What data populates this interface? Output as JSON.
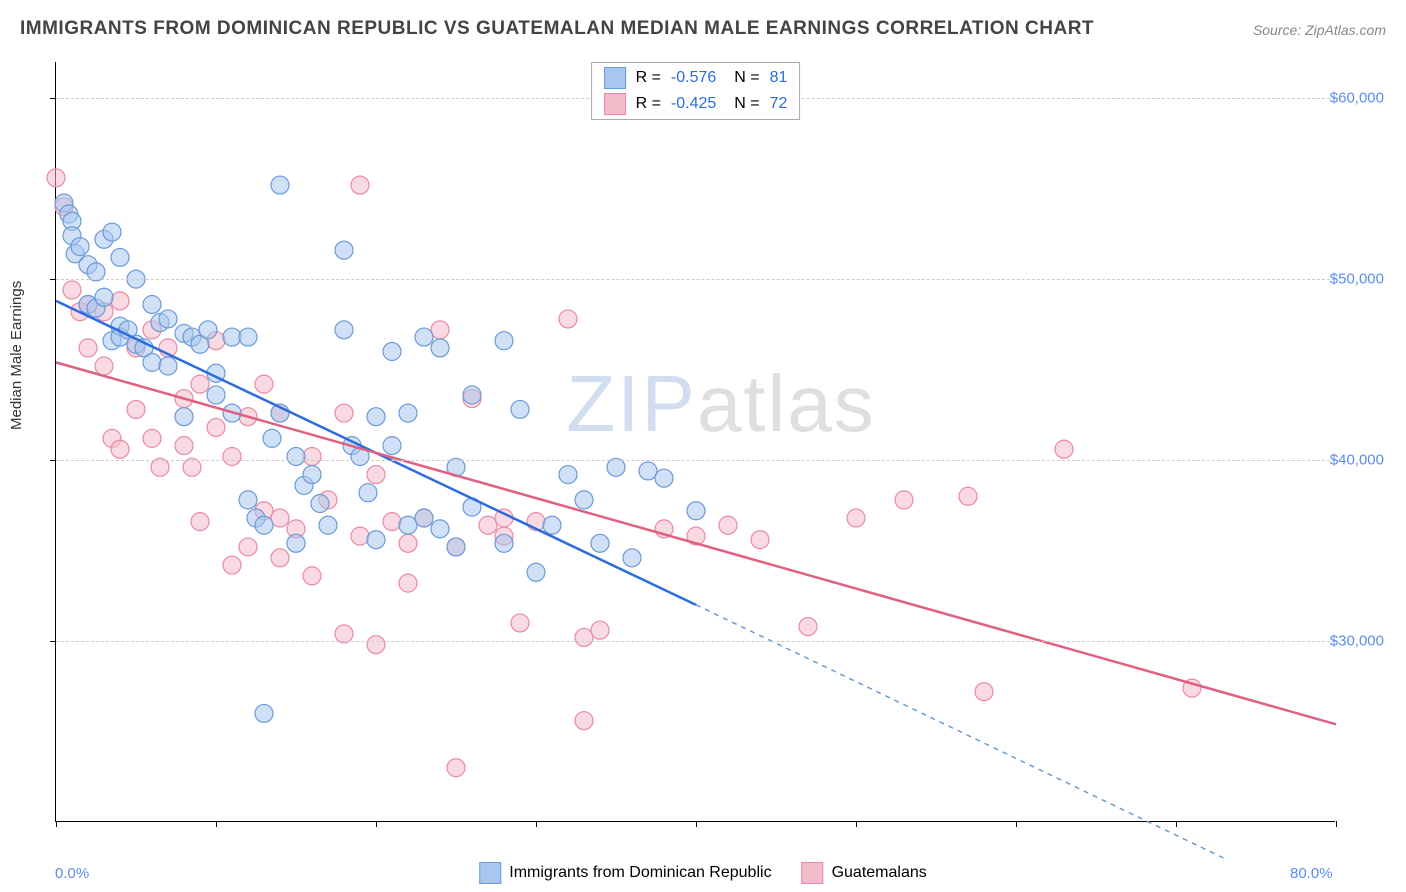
{
  "title": "IMMIGRANTS FROM DOMINICAN REPUBLIC VS GUATEMALAN MEDIAN MALE EARNINGS CORRELATION CHART",
  "source": "Source: ZipAtlas.com",
  "y_axis_label": "Median Male Earnings",
  "watermark": {
    "part1": "ZIP",
    "part2": "atlas"
  },
  "chart": {
    "type": "scatter",
    "xlim": [
      0,
      80
    ],
    "ylim": [
      20000,
      62000
    ],
    "x_ticks_minor": [
      0,
      10,
      20,
      30,
      40,
      50,
      60,
      70,
      80
    ],
    "x_tick_labels": [
      {
        "x": 0,
        "label": "0.0%"
      },
      {
        "x": 80,
        "label": "80.0%"
      }
    ],
    "y_gridlines": [
      30000,
      40000,
      50000,
      60000
    ],
    "y_tick_labels": [
      {
        "y": 30000,
        "label": "$30,000"
      },
      {
        "y": 40000,
        "label": "$40,000"
      },
      {
        "y": 50000,
        "label": "$50,000"
      },
      {
        "y": 60000,
        "label": "$60,000"
      }
    ],
    "background_color": "#ffffff",
    "grid_color": "#cccccc",
    "marker_radius": 9,
    "marker_opacity": 0.55,
    "line_width": 2.5,
    "series": [
      {
        "key": "dominican",
        "label": "Immigrants from Dominican Republic",
        "color_fill": "#a9c6ee",
        "color_stroke": "#6a9ad8",
        "trend_color": "#2d6cdf",
        "R": "-0.576",
        "N": "81",
        "trend": {
          "x1": 0,
          "y1": 48800,
          "x2": 40,
          "y2": 32000,
          "extend_x2": 73,
          "extend_y2": 18000
        },
        "points": [
          [
            0.5,
            54200
          ],
          [
            0.8,
            53600
          ],
          [
            1,
            53200
          ],
          [
            1,
            52400
          ],
          [
            1.2,
            51400
          ],
          [
            1.5,
            51800
          ],
          [
            2,
            50800
          ],
          [
            2.5,
            50400
          ],
          [
            2,
            48600
          ],
          [
            2.5,
            48400
          ],
          [
            3,
            49000
          ],
          [
            3,
            52200
          ],
          [
            3.5,
            52600
          ],
          [
            4,
            51200
          ],
          [
            3.5,
            46600
          ],
          [
            4,
            47400
          ],
          [
            4,
            46800
          ],
          [
            4.5,
            47200
          ],
          [
            5,
            46400
          ],
          [
            5,
            50000
          ],
          [
            5.5,
            46200
          ],
          [
            6,
            48600
          ],
          [
            6.5,
            47600
          ],
          [
            7,
            47800
          ],
          [
            6,
            45400
          ],
          [
            7,
            45200
          ],
          [
            8,
            47000
          ],
          [
            8.5,
            46800
          ],
          [
            9,
            46400
          ],
          [
            9.5,
            47200
          ],
          [
            10,
            44800
          ],
          [
            10,
            43600
          ],
          [
            11,
            46800
          ],
          [
            11,
            42600
          ],
          [
            12,
            46800
          ],
          [
            12,
            37800
          ],
          [
            12.5,
            36800
          ],
          [
            13,
            36400
          ],
          [
            13.5,
            41200
          ],
          [
            14,
            42600
          ],
          [
            14,
            55200
          ],
          [
            15,
            40200
          ],
          [
            15,
            35400
          ],
          [
            15.5,
            38600
          ],
          [
            16,
            39200
          ],
          [
            16.5,
            37600
          ],
          [
            17,
            36400
          ],
          [
            18,
            51600
          ],
          [
            18,
            47200
          ],
          [
            18.5,
            40800
          ],
          [
            19,
            40200
          ],
          [
            19.5,
            38200
          ],
          [
            20,
            42400
          ],
          [
            20,
            35600
          ],
          [
            21,
            46000
          ],
          [
            21,
            40800
          ],
          [
            22,
            42600
          ],
          [
            22,
            36400
          ],
          [
            23,
            46800
          ],
          [
            23,
            36800
          ],
          [
            24,
            36200
          ],
          [
            24,
            46200
          ],
          [
            25,
            39600
          ],
          [
            25,
            35200
          ],
          [
            26,
            43600
          ],
          [
            26,
            37400
          ],
          [
            28,
            46600
          ],
          [
            28,
            35400
          ],
          [
            29,
            42800
          ],
          [
            30,
            33800
          ],
          [
            31,
            36400
          ],
          [
            32,
            39200
          ],
          [
            33,
            37800
          ],
          [
            34,
            35400
          ],
          [
            35,
            39600
          ],
          [
            36,
            34600
          ],
          [
            37,
            39400
          ],
          [
            38,
            39000
          ],
          [
            40,
            37200
          ],
          [
            13,
            26000
          ],
          [
            8,
            42400
          ]
        ]
      },
      {
        "key": "guatemalan",
        "label": "Guatemalans",
        "color_fill": "#f4bccb",
        "color_stroke": "#e88aa5",
        "trend_color": "#e0607f",
        "R": "-0.425",
        "N": "72",
        "trend": {
          "x1": 0,
          "y1": 45400,
          "x2": 80,
          "y2": 25400
        },
        "points": [
          [
            0,
            55600
          ],
          [
            0.5,
            54000
          ],
          [
            1,
            49400
          ],
          [
            1.5,
            48200
          ],
          [
            2,
            48600
          ],
          [
            2,
            46200
          ],
          [
            3,
            48200
          ],
          [
            3,
            45200
          ],
          [
            3.5,
            41200
          ],
          [
            4,
            48800
          ],
          [
            4,
            40600
          ],
          [
            5,
            46200
          ],
          [
            5,
            42800
          ],
          [
            6,
            47200
          ],
          [
            6,
            41200
          ],
          [
            6.5,
            39600
          ],
          [
            7,
            46200
          ],
          [
            8,
            43400
          ],
          [
            8,
            40800
          ],
          [
            8.5,
            39600
          ],
          [
            9,
            44200
          ],
          [
            9,
            36600
          ],
          [
            10,
            46600
          ],
          [
            10,
            41800
          ],
          [
            11,
            34200
          ],
          [
            11,
            40200
          ],
          [
            12,
            42400
          ],
          [
            12,
            35200
          ],
          [
            13,
            44200
          ],
          [
            13,
            37200
          ],
          [
            14,
            42600
          ],
          [
            14,
            34600
          ],
          [
            15,
            36200
          ],
          [
            16,
            40200
          ],
          [
            16,
            33600
          ],
          [
            17,
            37800
          ],
          [
            18,
            42600
          ],
          [
            18,
            30400
          ],
          [
            19,
            55200
          ],
          [
            19,
            35800
          ],
          [
            20,
            39200
          ],
          [
            20,
            29800
          ],
          [
            21,
            36600
          ],
          [
            22,
            35400
          ],
          [
            23,
            36800
          ],
          [
            24,
            47200
          ],
          [
            25,
            35200
          ],
          [
            25,
            23000
          ],
          [
            26,
            43400
          ],
          [
            27,
            36400
          ],
          [
            28,
            35800
          ],
          [
            29,
            31000
          ],
          [
            30,
            36600
          ],
          [
            32,
            47800
          ],
          [
            33,
            25600
          ],
          [
            33,
            30200
          ],
          [
            34,
            30600
          ],
          [
            36,
            60400
          ],
          [
            38,
            36200
          ],
          [
            40,
            35800
          ],
          [
            42,
            36400
          ],
          [
            44,
            35600
          ],
          [
            47,
            30800
          ],
          [
            50,
            36800
          ],
          [
            53,
            37800
          ],
          [
            57,
            38000
          ],
          [
            58,
            27200
          ],
          [
            63,
            40600
          ],
          [
            71,
            27400
          ],
          [
            14,
            36800
          ],
          [
            22,
            33200
          ],
          [
            28,
            36800
          ]
        ]
      }
    ]
  },
  "legend_top_labels": {
    "R_label": "R =",
    "N_label": "N ="
  }
}
